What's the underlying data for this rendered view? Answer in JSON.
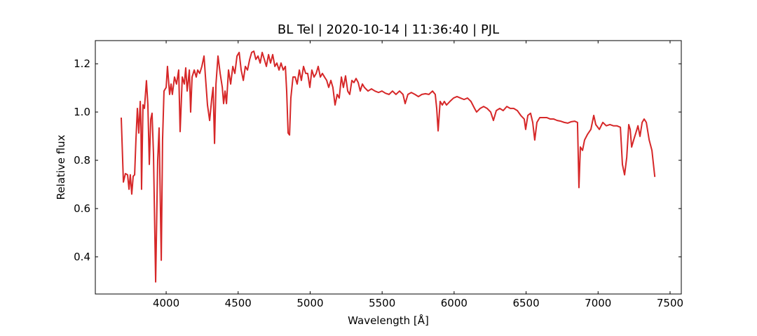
{
  "chart_data": {
    "type": "line",
    "title": "BL Tel | 2020-10-14 | 11:36:40 | PJL",
    "xlabel": "Wavelength [Å]",
    "ylabel": "Relative flux",
    "color": "#d62728",
    "xlim": [
      3508,
      7578
    ],
    "ylim": [
      0.246,
      1.296
    ],
    "xticks": [
      4000,
      4500,
      5000,
      5500,
      6000,
      6500,
      7000,
      7500
    ],
    "yticks": [
      0.4,
      0.6,
      0.8,
      {
        "value": 1,
        "label": "1.0"
      },
      1.2
    ],
    "grid": false,
    "x": [
      3688,
      3703,
      3717,
      3732,
      3742,
      3751,
      3761,
      3771,
      3781,
      3790,
      3800,
      3810,
      3820,
      3825,
      3829,
      3839,
      3849,
      3863,
      3873,
      3883,
      3893,
      3902,
      3912,
      3927,
      3941,
      3951,
      3966,
      3975,
      3985,
      4000,
      4009,
      4024,
      4034,
      4043,
      4058,
      4072,
      4087,
      4097,
      4112,
      4126,
      4136,
      4146,
      4161,
      4170,
      4180,
      4195,
      4209,
      4219,
      4233,
      4248,
      4263,
      4273,
      4287,
      4302,
      4317,
      4326,
      4336,
      4346,
      4360,
      4375,
      4390,
      4399,
      4409,
      4419,
      4433,
      4448,
      4463,
      4477,
      4492,
      4507,
      4521,
      4536,
      4550,
      4565,
      4580,
      4594,
      4609,
      4623,
      4638,
      4653,
      4667,
      4682,
      4696,
      4711,
      4725,
      4740,
      4755,
      4769,
      4784,
      4798,
      4813,
      4828,
      4837,
      4847,
      4857,
      4866,
      4881,
      4896,
      4910,
      4925,
      4939,
      4954,
      4969,
      4983,
      4998,
      5012,
      5027,
      5042,
      5056,
      5071,
      5085,
      5100,
      5115,
      5129,
      5144,
      5158,
      5173,
      5188,
      5202,
      5217,
      5231,
      5246,
      5261,
      5275,
      5290,
      5304,
      5319,
      5334,
      5348,
      5363,
      5377,
      5402,
      5426,
      5450,
      5475,
      5499,
      5523,
      5548,
      5572,
      5596,
      5621,
      5645,
      5660,
      5679,
      5703,
      5728,
      5752,
      5776,
      5801,
      5825,
      5850,
      5869,
      5879,
      5889,
      5903,
      5918,
      5932,
      5947,
      5971,
      5996,
      6020,
      6044,
      6069,
      6093,
      6117,
      6142,
      6156,
      6181,
      6205,
      6229,
      6254,
      6273,
      6293,
      6317,
      6341,
      6366,
      6390,
      6414,
      6439,
      6463,
      6487,
      6497,
      6512,
      6531,
      6546,
      6560,
      6575,
      6595,
      6619,
      6643,
      6668,
      6692,
      6716,
      6741,
      6765,
      6789,
      6814,
      6838,
      6857,
      6867,
      6877,
      6892,
      6906,
      6926,
      6950,
      6970,
      6984,
      7009,
      7033,
      7057,
      7082,
      7106,
      7130,
      7155,
      7169,
      7184,
      7199,
      7213,
      7223,
      7233,
      7247,
      7262,
      7277,
      7291,
      7306,
      7320,
      7335,
      7355,
      7374,
      7394
    ],
    "values": [
      0.977,
      0.71,
      0.745,
      0.74,
      0.68,
      0.74,
      0.66,
      0.734,
      0.74,
      0.884,
      1.015,
      0.913,
      1.044,
      0.94,
      0.68,
      1.03,
      1.015,
      1.13,
      1.03,
      0.783,
      0.97,
      0.995,
      0.826,
      0.296,
      0.797,
      0.934,
      0.386,
      0.884,
      1.087,
      1.102,
      1.189,
      1.073,
      1.116,
      1.073,
      1.145,
      1.116,
      1.174,
      0.919,
      1.145,
      1.116,
      1.183,
      1.087,
      1.174,
      1.0,
      1.145,
      1.174,
      1.145,
      1.174,
      1.16,
      1.189,
      1.232,
      1.145,
      1.029,
      0.965,
      1.058,
      1.102,
      0.87,
      1.116,
      1.232,
      1.16,
      1.102,
      1.035,
      1.087,
      1.035,
      1.174,
      1.116,
      1.189,
      1.16,
      1.232,
      1.247,
      1.174,
      1.131,
      1.189,
      1.174,
      1.218,
      1.247,
      1.252,
      1.218,
      1.232,
      1.203,
      1.247,
      1.218,
      1.189,
      1.238,
      1.203,
      1.238,
      1.189,
      1.203,
      1.174,
      1.203,
      1.174,
      1.189,
      1.087,
      0.913,
      0.905,
      1.058,
      1.145,
      1.145,
      1.116,
      1.174,
      1.131,
      1.189,
      1.16,
      1.16,
      1.102,
      1.174,
      1.145,
      1.16,
      1.189,
      1.145,
      1.16,
      1.145,
      1.131,
      1.102,
      1.131,
      1.102,
      1.029,
      1.073,
      1.058,
      1.145,
      1.102,
      1.15,
      1.087,
      1.073,
      1.131,
      1.122,
      1.139,
      1.122,
      1.087,
      1.116,
      1.102,
      1.087,
      1.096,
      1.087,
      1.081,
      1.087,
      1.078,
      1.073,
      1.087,
      1.073,
      1.087,
      1.073,
      1.035,
      1.073,
      1.081,
      1.073,
      1.064,
      1.073,
      1.076,
      1.073,
      1.087,
      1.073,
      1.015,
      0.922,
      1.044,
      1.029,
      1.044,
      1.029,
      1.044,
      1.058,
      1.064,
      1.058,
      1.052,
      1.058,
      1.044,
      1.015,
      1.0,
      1.015,
      1.023,
      1.015,
      1.0,
      0.965,
      1.006,
      1.015,
      1.006,
      1.023,
      1.015,
      1.015,
      1.006,
      0.986,
      0.971,
      0.928,
      0.986,
      0.995,
      0.957,
      0.884,
      0.957,
      0.977,
      0.977,
      0.977,
      0.971,
      0.971,
      0.965,
      0.962,
      0.957,
      0.954,
      0.96,
      0.962,
      0.957,
      0.687,
      0.855,
      0.841,
      0.884,
      0.907,
      0.928,
      0.986,
      0.948,
      0.928,
      0.957,
      0.943,
      0.948,
      0.943,
      0.943,
      0.937,
      0.783,
      0.74,
      0.812,
      0.948,
      0.928,
      0.855,
      0.884,
      0.913,
      0.943,
      0.899,
      0.957,
      0.971,
      0.957,
      0.884,
      0.841,
      0.731
    ]
  }
}
